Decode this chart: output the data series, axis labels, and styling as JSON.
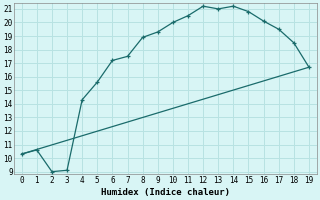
{
  "xlabel": "Humidex (Indice chaleur)",
  "line1_x": [
    0,
    1,
    2,
    3,
    4,
    5,
    6,
    7,
    8,
    9,
    10,
    11,
    12,
    13,
    14,
    15,
    16,
    17,
    18,
    19
  ],
  "line1_y": [
    10.3,
    10.6,
    9.0,
    9.1,
    14.3,
    15.6,
    17.2,
    17.5,
    18.9,
    19.3,
    20.0,
    20.5,
    21.2,
    21.0,
    21.2,
    20.8,
    20.1,
    19.5,
    18.5,
    16.7
  ],
  "line2_x": [
    0,
    19
  ],
  "line2_y": [
    10.3,
    16.7
  ],
  "line_color": "#1a6b6b",
  "bg_color": "#d8f5f5",
  "grid_color": "#b8e2e2",
  "xlim": [
    -0.5,
    19.5
  ],
  "ylim": [
    8.8,
    21.4
  ],
  "xticks": [
    0,
    1,
    2,
    3,
    4,
    5,
    6,
    7,
    8,
    9,
    10,
    11,
    12,
    13,
    14,
    15,
    16,
    17,
    18,
    19
  ],
  "yticks": [
    9,
    10,
    11,
    12,
    13,
    14,
    15,
    16,
    17,
    18,
    19,
    20,
    21
  ]
}
